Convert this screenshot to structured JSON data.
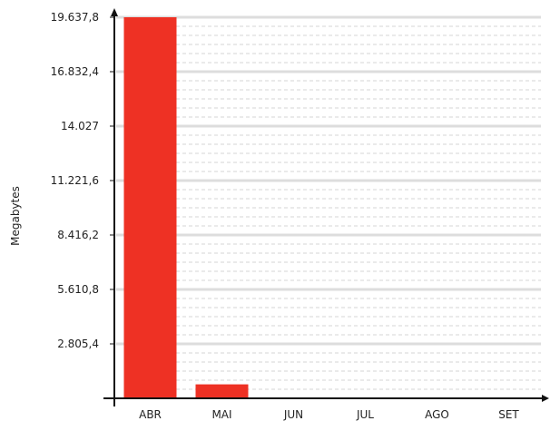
{
  "chart_data": {
    "type": "bar",
    "categories": [
      "ABR",
      "MAI",
      "JUN",
      "JUL",
      "AGO",
      "SET"
    ],
    "values": [
      19637.8,
      720,
      0,
      0,
      0,
      0
    ],
    "ylabel": "Megabytes",
    "xlabel": "",
    "ylim": [
      0,
      19637.8
    ],
    "yticks": [
      2805.4,
      5610.8,
      8416.2,
      11221.6,
      14027,
      16832.4,
      19637.8
    ],
    "ytick_labels": [
      "2.805,4",
      "5.610,8",
      "8.416,2",
      "11.221,6",
      "14.027",
      "16.832,4",
      "19.637,8"
    ],
    "grid": true,
    "bar_color": "#ee3124"
  }
}
